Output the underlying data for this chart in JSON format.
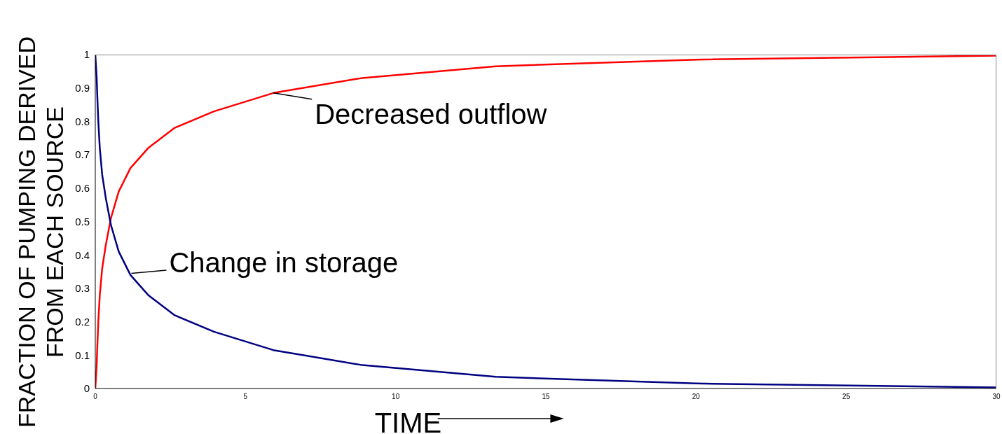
{
  "chart_data": {
    "type": "line",
    "xlabel": "TIME",
    "ylabel": "FRACTION OF PUMPING DERIVED\nFROM EACH SOURCE",
    "x": [
      0,
      0.046,
      0.069,
      0.1,
      0.15,
      0.23,
      0.35,
      0.52,
      0.78,
      1.17,
      1.76,
      2.63,
      3.95,
      5.93,
      8.89,
      13.33,
      20,
      30
    ],
    "series": [
      {
        "color": "#ff0000",
        "values": [
          0,
          0.07,
          0.13,
          0.2,
          0.28,
          0.36,
          0.43,
          0.51,
          0.59,
          0.66,
          0.72,
          0.78,
          0.83,
          0.885,
          0.93,
          0.965,
          0.985,
          0.997
        ]
      },
      {
        "color": "#000080",
        "values": [
          1,
          0.93,
          0.87,
          0.8,
          0.72,
          0.64,
          0.57,
          0.49,
          0.41,
          0.34,
          0.28,
          0.22,
          0.17,
          0.115,
          0.07,
          0.035,
          0.015,
          0.003
        ]
      }
    ],
    "annotations": [
      {
        "text": "Decreased outflow",
        "x": 5.93,
        "y": 0.885
      },
      {
        "text": "Change in storage",
        "x": 1.2,
        "y": 0.345
      }
    ],
    "xlim": [
      0,
      30
    ],
    "xticks": [
      0,
      5,
      10,
      15,
      20,
      25,
      30
    ],
    "ylim": [
      0,
      1
    ],
    "yticks": [
      0,
      0.1,
      0.2,
      0.3,
      0.4,
      0.5,
      0.6,
      0.7,
      0.8,
      0.9,
      1
    ],
    "grid": false,
    "line_style": "solid"
  }
}
